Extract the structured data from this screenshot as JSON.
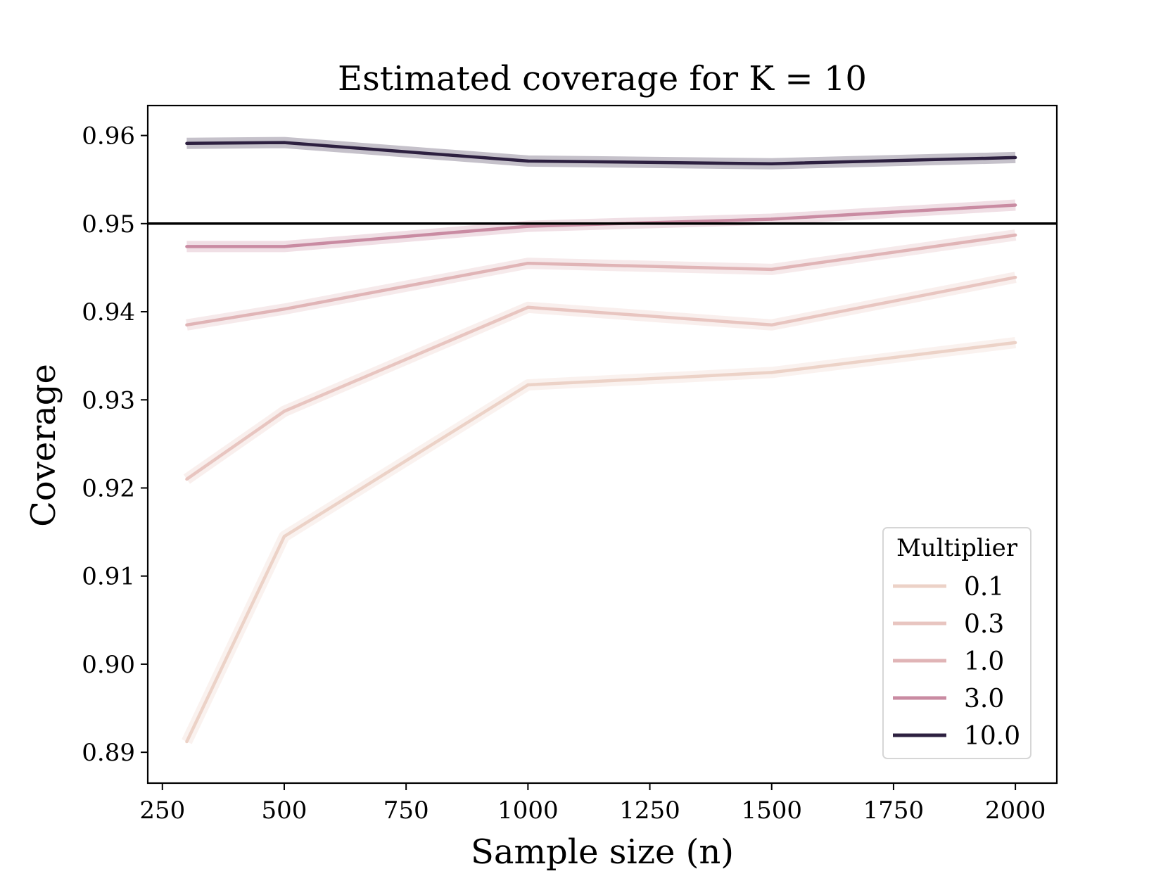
{
  "chart_data": {
    "type": "line",
    "title": "Estimated coverage for K = 10",
    "xlabel": "Sample size (n)",
    "ylabel": "Coverage",
    "xlim": [
      220,
      2085
    ],
    "ylim": [
      0.8865,
      0.9634
    ],
    "xticks": [
      250,
      500,
      750,
      1000,
      1250,
      1500,
      1750,
      2000
    ],
    "xtick_labels": [
      "250",
      "500",
      "750",
      "1000",
      "1250",
      "1500",
      "1750",
      "2000"
    ],
    "yticks": [
      0.89,
      0.9,
      0.91,
      0.92,
      0.93,
      0.94,
      0.95,
      0.96
    ],
    "ytick_labels": [
      "0.89",
      "0.90",
      "0.91",
      "0.92",
      "0.93",
      "0.94",
      "0.95",
      "0.96"
    ],
    "x": [
      300,
      500,
      1000,
      1500,
      2000
    ],
    "reference_line": {
      "y": 0.95,
      "color": "#000000"
    },
    "legend": {
      "title": "Multiplier",
      "location": "lower-right"
    },
    "series": [
      {
        "name": "0.1",
        "color": "#ecd2c7",
        "values": [
          0.8912,
          0.9145,
          0.9317,
          0.9331,
          0.9365
        ]
      },
      {
        "name": "0.3",
        "color": "#e8c5c0",
        "values": [
          0.921,
          0.9287,
          0.9405,
          0.9385,
          0.9439
        ]
      },
      {
        "name": "1.0",
        "color": "#e0b4b6",
        "values": [
          0.9385,
          0.9403,
          0.9455,
          0.9448,
          0.9487
        ]
      },
      {
        "name": "3.0",
        "color": "#c98ba2",
        "values": [
          0.9474,
          0.9474,
          0.9497,
          0.9505,
          0.9521
        ]
      },
      {
        "name": "10.0",
        "color": "#2d2040",
        "values": [
          0.9591,
          0.9592,
          0.9571,
          0.9568,
          0.9575
        ]
      }
    ]
  }
}
